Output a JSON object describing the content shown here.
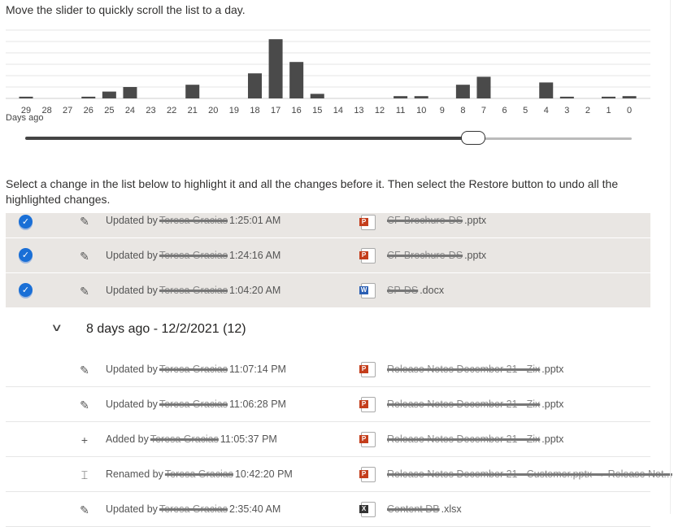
{
  "intro": "Move the slider to quickly scroll the list to a day.",
  "chart_data": {
    "type": "bar",
    "categories": [
      "29",
      "28",
      "27",
      "26",
      "25",
      "24",
      "23",
      "22",
      "21",
      "20",
      "19",
      "18",
      "17",
      "16",
      "15",
      "14",
      "13",
      "12",
      "11",
      "10",
      "9",
      "8",
      "7",
      "6",
      "5",
      "4",
      "3",
      "2",
      "1",
      "0"
    ],
    "values": [
      0.15,
      0,
      0,
      0.15,
      0.6,
      1,
      0,
      0,
      1.2,
      0,
      0,
      2.2,
      5.2,
      3.2,
      0.4,
      0,
      0,
      0,
      0.2,
      0.2,
      0,
      1.2,
      1.9,
      0,
      0,
      1.4,
      0.15,
      0,
      0.15,
      0.2
    ],
    "xlabel": "Days ago",
    "ylim": [
      0,
      6
    ],
    "grid": true,
    "bar_color": "#4a4a4a"
  },
  "slider": {
    "value_days_ago": 7.5,
    "min": 0,
    "max": 29
  },
  "instructions": "Select a change in the list below to highlight it and all the changes before it. Then select the Restore button to undo all the highlighted changes.",
  "selected_rows": [
    {
      "action": "Updated by",
      "user": "Teresa Gracias",
      "time": "1:25:01 AM",
      "file_redacted": "CF-Brochure-DS",
      "file_ext": ".pptx",
      "file_type": "pptx"
    },
    {
      "action": "Updated by",
      "user": "Teresa Gracias",
      "time": "1:24:16 AM",
      "file_redacted": "CF-Brochure-DS",
      "file_ext": ".pptx",
      "file_type": "pptx"
    },
    {
      "action": "Updated by",
      "user": "Teresa Gracias",
      "time": "1:04:20 AM",
      "file_redacted": "SP-DS",
      "file_ext": ".docx",
      "file_type": "docx"
    }
  ],
  "group": {
    "title": "8 days ago - 12/2/2021 (12)"
  },
  "rows": [
    {
      "action": "Updated by",
      "user": "Teresa Gracias",
      "time": "11:07:14 PM",
      "file_redacted": "Release Notes December 21 - Zix",
      "file_ext": ".pptx",
      "file_type": "pptx",
      "icon": "pencil-icon"
    },
    {
      "action": "Updated by",
      "user": "Teresa Gracias",
      "time": "11:06:28 PM",
      "file_redacted": "Release Notes December 21 - Zix",
      "file_ext": ".pptx",
      "file_type": "pptx",
      "icon": "pencil-icon"
    },
    {
      "action": "Added by",
      "user": "Teresa Gracias",
      "time": "11:05:37 PM",
      "file_redacted": "Release Notes December 21 - Zix",
      "file_ext": ".pptx",
      "file_type": "pptx",
      "icon": "plus-icon"
    },
    {
      "action": "Renamed by",
      "user": "Teresa Gracias",
      "time": "10:42:20 PM",
      "file_redacted": "Release Notes December 21 - Customer.pptx → Release Not...",
      "file_ext": "",
      "file_type": "pptx",
      "icon": "rename-icon"
    },
    {
      "action": "Updated by",
      "user": "Teresa Gracias",
      "time": "2:35:40 AM",
      "file_redacted": "Content DB",
      "file_ext": ".xlsx",
      "file_type": "xlsx",
      "icon": "pencil-icon"
    }
  ],
  "file_colors": {
    "pptx": "#c43e1c",
    "docx": "#2b5fb4",
    "xlsx": "#333333"
  },
  "accent": "#1a6fd6"
}
